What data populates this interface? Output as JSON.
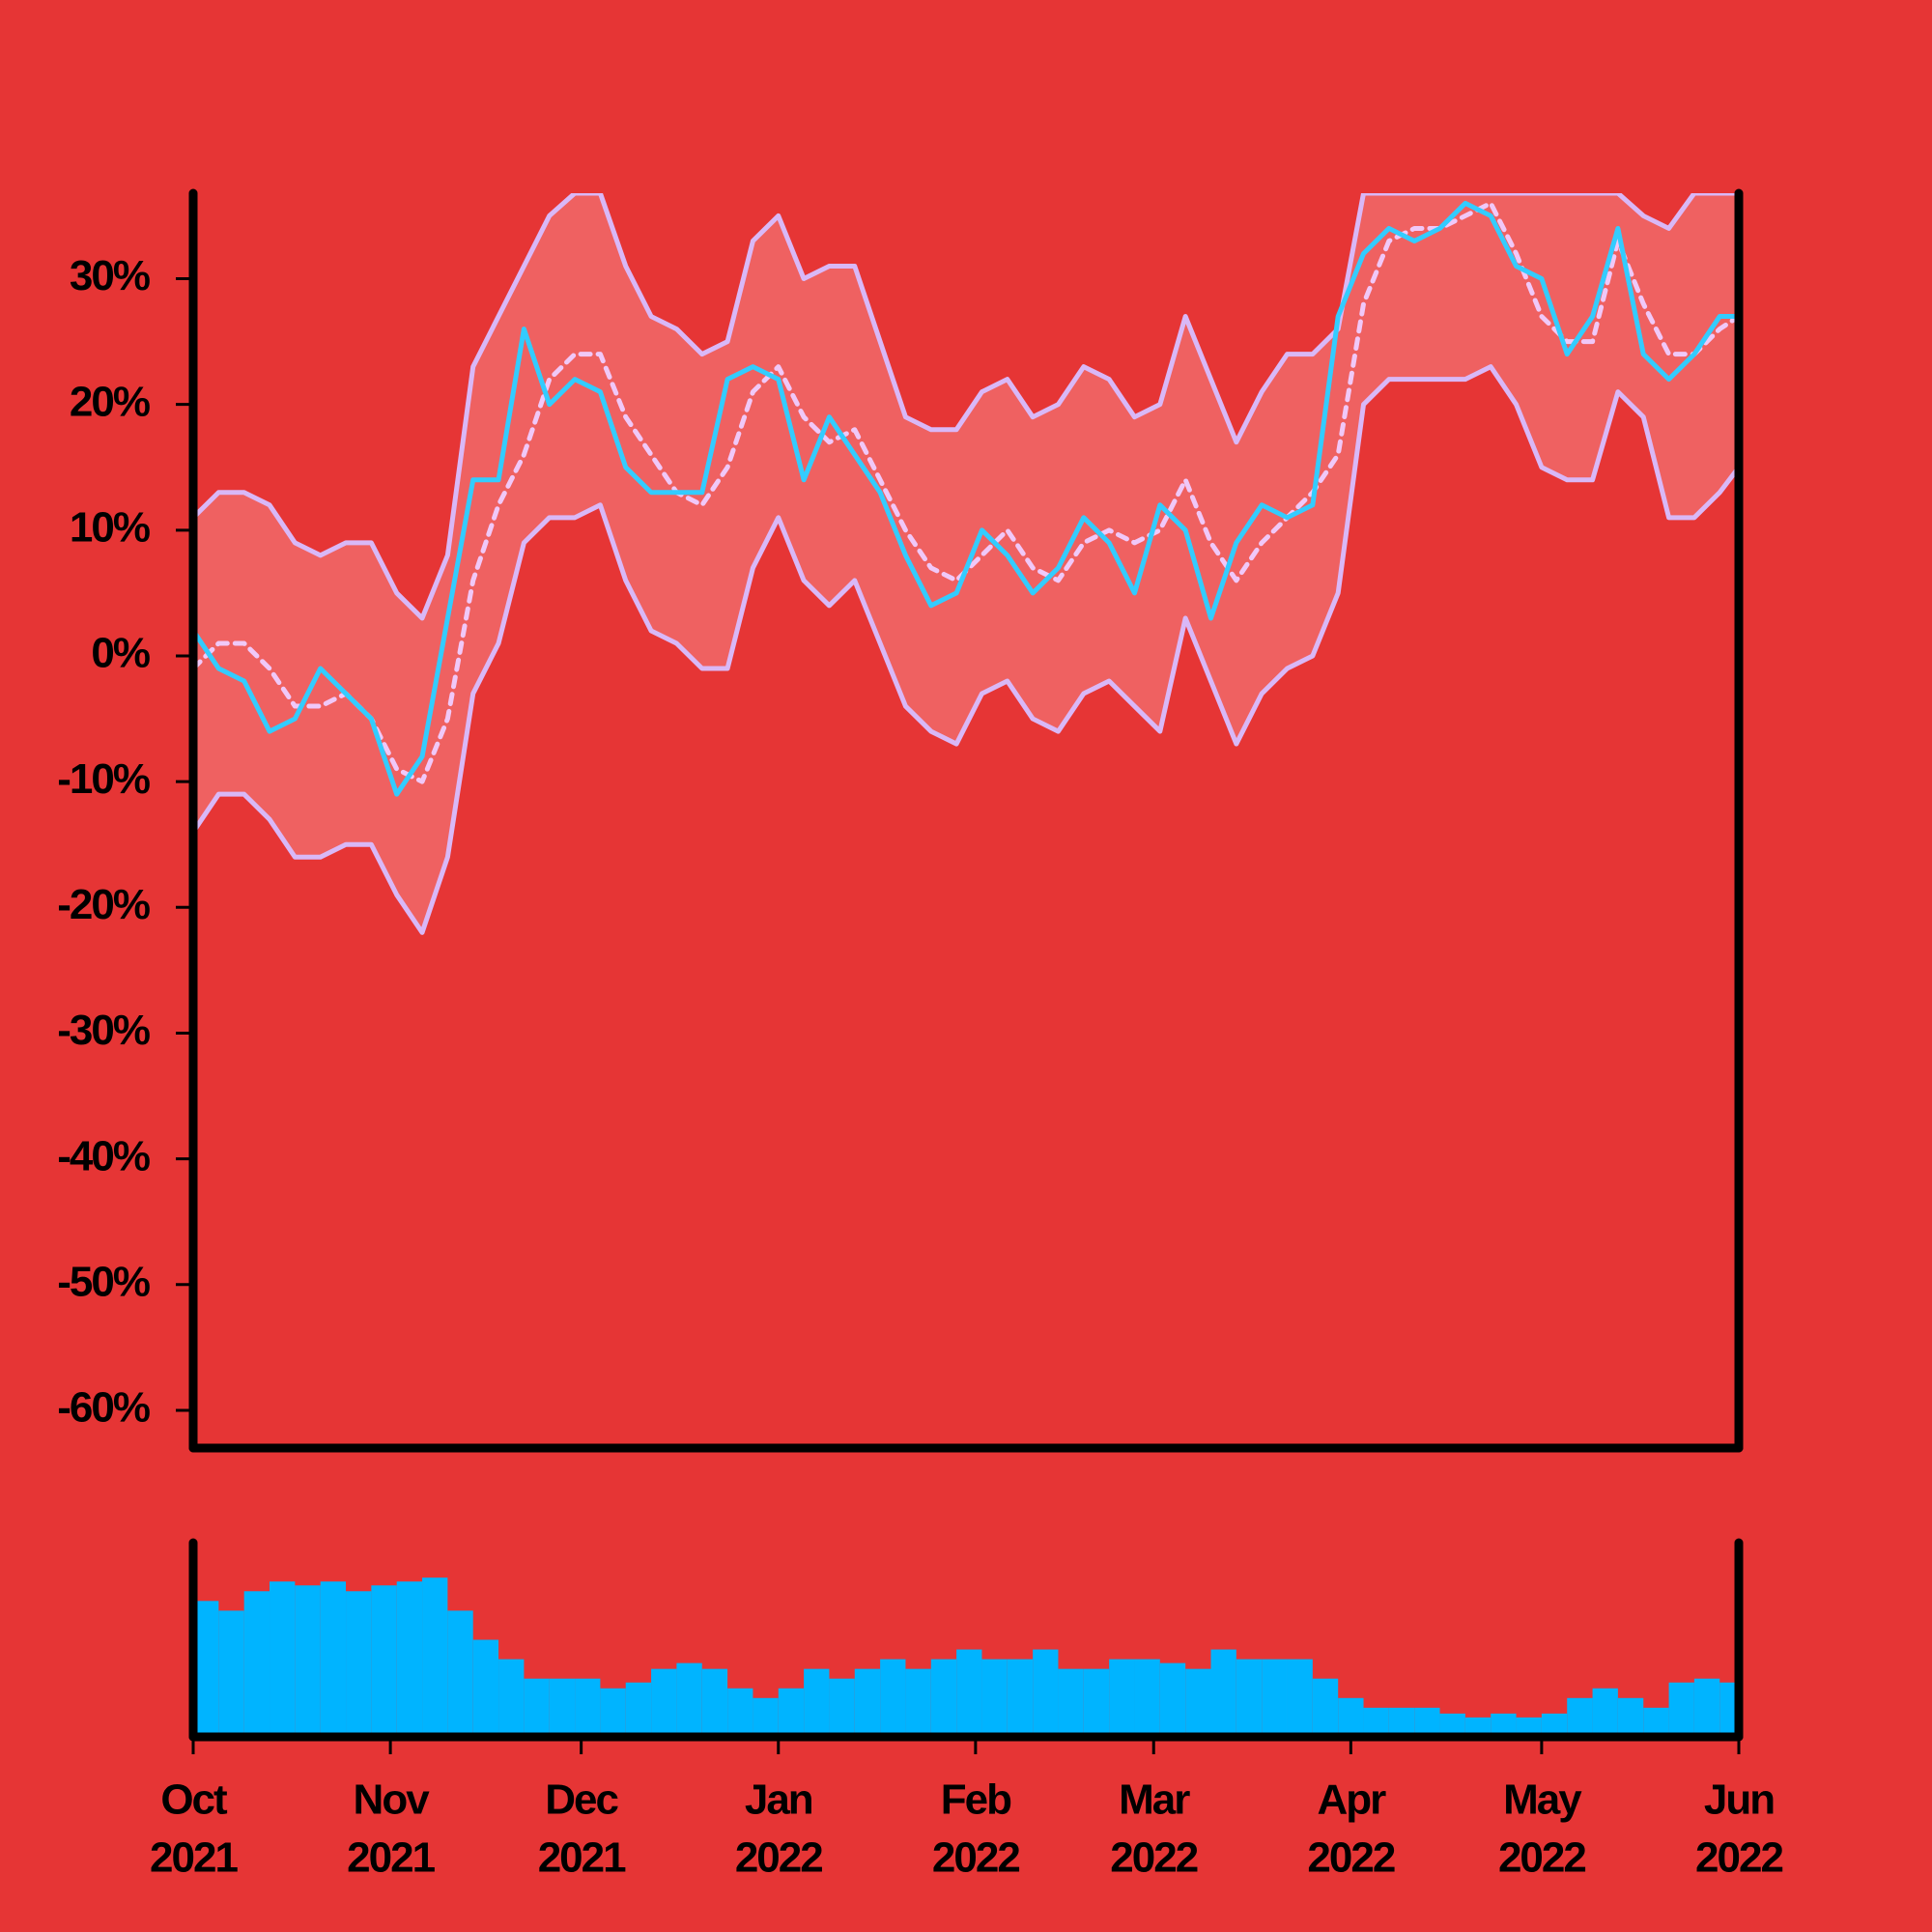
{
  "chart_data": {
    "type": "line",
    "x": [
      0,
      4,
      8,
      12,
      16,
      20,
      24,
      28,
      32,
      36,
      40,
      44,
      48,
      52,
      56,
      60,
      64,
      68,
      72,
      76,
      80,
      84,
      88,
      92,
      96,
      100,
      104,
      108,
      112,
      116,
      120,
      124,
      128,
      132,
      136,
      140,
      144,
      148,
      152,
      156,
      160,
      164,
      168,
      172,
      176,
      180,
      184,
      188,
      192,
      196,
      200,
      204,
      208,
      212,
      216,
      220,
      224,
      228,
      232,
      236,
      240,
      243
    ],
    "xlim": [
      0,
      243
    ],
    "xticks": [
      {
        "value": 0,
        "label": "Oct",
        "sublabel": "2021"
      },
      {
        "value": 31,
        "label": "Nov",
        "sublabel": "2021"
      },
      {
        "value": 61,
        "label": "Dec",
        "sublabel": "2021"
      },
      {
        "value": 92,
        "label": "Jan",
        "sublabel": "2022"
      },
      {
        "value": 123,
        "label": "Feb",
        "sublabel": "2022"
      },
      {
        "value": 151,
        "label": "Mar",
        "sublabel": "2022"
      },
      {
        "value": 182,
        "label": "Apr",
        "sublabel": "2022"
      },
      {
        "value": 212,
        "label": "May",
        "sublabel": "2022"
      },
      {
        "value": 243,
        "label": "Jun",
        "sublabel": "2022"
      }
    ],
    "ylim": [
      -63,
      36.8
    ],
    "yticks": [
      {
        "value": -60,
        "label": "-60%"
      },
      {
        "value": -50,
        "label": "-50%"
      },
      {
        "value": -40,
        "label": "-40%"
      },
      {
        "value": -30,
        "label": "-30%"
      },
      {
        "value": -20,
        "label": "-20%"
      },
      {
        "value": -10,
        "label": "-10%"
      },
      {
        "value": 0,
        "label": "0%"
      },
      {
        "value": 10,
        "label": "10%"
      },
      {
        "value": 20,
        "label": "20%"
      },
      {
        "value": 30,
        "label": "30%"
      }
    ],
    "band_color": "#ef6161",
    "series": [
      {
        "color": "#d9b8f7",
        "band": "upper",
        "values": [
          11,
          13,
          13,
          12,
          9,
          8,
          9,
          9,
          5,
          3,
          8,
          23,
          27,
          31,
          35,
          36.8,
          36.8,
          31,
          27,
          26,
          24,
          25,
          33,
          35,
          30,
          31,
          31,
          25,
          19,
          18,
          18,
          21,
          22,
          19,
          20,
          23,
          22,
          19,
          20,
          27,
          22,
          17,
          21,
          24,
          24,
          26,
          36.8,
          36.8,
          36.8,
          36.8,
          36.8,
          36.8,
          36.8,
          36.8,
          36.8,
          36.8,
          36.8,
          35,
          34,
          36.8,
          36.8,
          36.8
        ]
      },
      {
        "color": "#d9b8f7",
        "band": "lower",
        "values": [
          -14,
          -11,
          -11,
          -13,
          -16,
          -16,
          -15,
          -15,
          -19,
          -22,
          -16,
          -3,
          1,
          9,
          11,
          11,
          12,
          6,
          2,
          1,
          -1,
          -1,
          7,
          11,
          6,
          4,
          6,
          1,
          -4,
          -6,
          -7,
          -3,
          -2,
          -5,
          -6,
          -3,
          -2,
          -4,
          -6,
          3,
          -2,
          -7,
          -3,
          -1,
          0,
          5,
          20,
          22,
          22,
          22,
          22,
          23,
          20,
          15,
          14,
          14,
          21,
          19,
          11,
          11,
          13,
          15
        ]
      },
      {
        "color": "#f0c8f8",
        "dashed": true,
        "values": [
          -1,
          1,
          1,
          -1,
          -4,
          -4,
          -3,
          -5,
          -9,
          -10,
          -5,
          6,
          12,
          16,
          22,
          24,
          24,
          19,
          16,
          13,
          12,
          15,
          21,
          23,
          19,
          17,
          18,
          14,
          10,
          7,
          6,
          8,
          10,
          7,
          6,
          9,
          10,
          9,
          10,
          14,
          9,
          6,
          9,
          11,
          13,
          16,
          28,
          33,
          34,
          34,
          35,
          36,
          32,
          27,
          25,
          25,
          33,
          28,
          24,
          24,
          26,
          27
        ]
      },
      {
        "color": "#33ccff",
        "values": [
          2,
          -1,
          -2,
          -6,
          -5,
          -1,
          -3,
          -5,
          -11,
          -8,
          3,
          14,
          14,
          26,
          20,
          22,
          21,
          15,
          13,
          13,
          13,
          22,
          23,
          22,
          14,
          19,
          16,
          13,
          8,
          4,
          5,
          10,
          8,
          5,
          7,
          11,
          9,
          5,
          12,
          10,
          3,
          9,
          12,
          11,
          12,
          27,
          32,
          34,
          33,
          34,
          36,
          35,
          31,
          30,
          24,
          27,
          34,
          24,
          22,
          24,
          27,
          27
        ]
      }
    ],
    "volume": {
      "color": "#00b4ff",
      "vlim": [
        0,
        100
      ],
      "values": [
        70,
        65,
        75,
        80,
        78,
        80,
        75,
        78,
        80,
        82,
        65,
        50,
        40,
        30,
        30,
        30,
        25,
        28,
        35,
        38,
        35,
        25,
        20,
        25,
        35,
        30,
        35,
        40,
        35,
        40,
        45,
        40,
        40,
        45,
        35,
        35,
        40,
        40,
        38,
        35,
        45,
        40,
        40,
        40,
        30,
        20,
        15,
        15,
        15,
        12,
        10,
        12,
        10,
        12,
        20,
        25,
        20,
        15,
        28,
        30,
        28,
        20
      ]
    }
  }
}
